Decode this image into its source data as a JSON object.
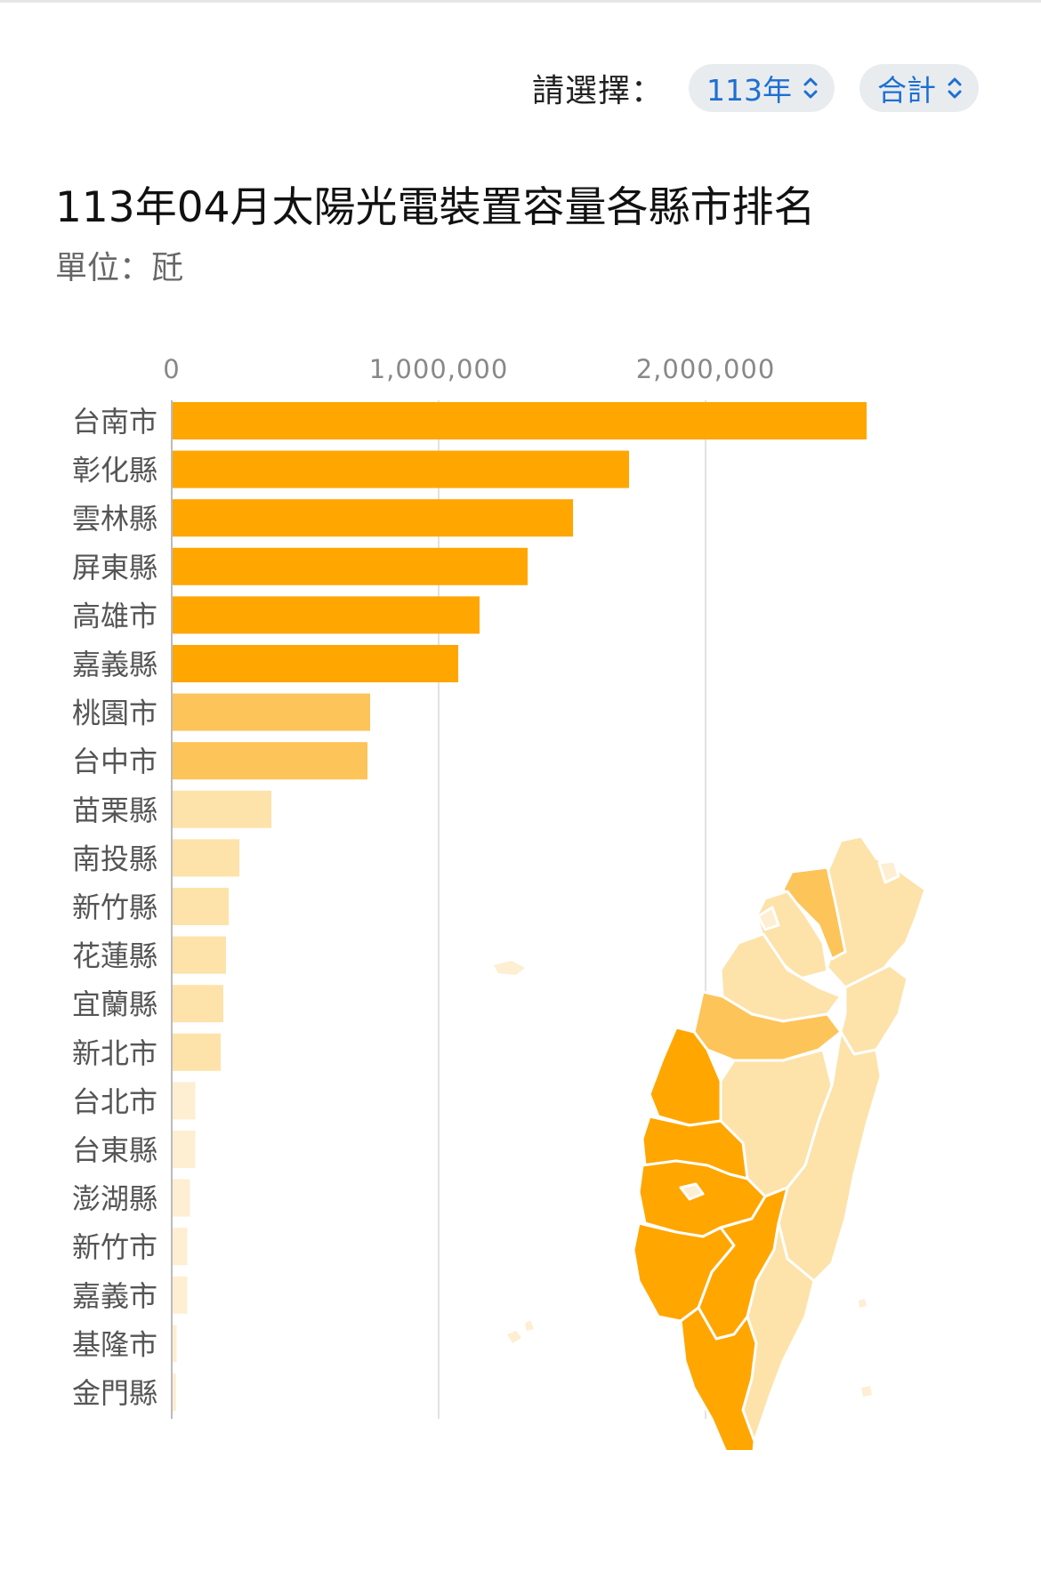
{
  "selector": {
    "label": "請選擇：",
    "year": "113年",
    "type": "合計"
  },
  "chart_data": {
    "type": "bar",
    "orientation": "horizontal",
    "title": "113年04月太陽光電裝置容量各縣市排名",
    "unit_label": "單位：瓩",
    "xlim": [
      0,
      2650000
    ],
    "ticks": [
      0,
      1000000,
      2000000
    ],
    "tick_labels": [
      "0",
      "1,000,000",
      "2,000,000"
    ],
    "grid": true,
    "categories": [
      "台南市",
      "彰化縣",
      "雲林縣",
      "屏東縣",
      "高雄市",
      "嘉義縣",
      "桃園市",
      "台中市",
      "苗栗縣",
      "南投縣",
      "新竹縣",
      "花蓮縣",
      "宜蘭縣",
      "新北市",
      "台北市",
      "台東縣",
      "澎湖縣",
      "新竹市",
      "嘉義市",
      "基隆市",
      "金門縣"
    ],
    "values": [
      2600000,
      1710000,
      1500000,
      1330000,
      1150000,
      1070000,
      740000,
      730000,
      370000,
      250000,
      210000,
      200000,
      190000,
      180000,
      85000,
      85000,
      65000,
      55000,
      55000,
      15000,
      13000
    ],
    "colors": [
      "#ffa600",
      "#ffa600",
      "#ffa600",
      "#ffa600",
      "#ffa600",
      "#ffa600",
      "#fdc459",
      "#fdc459",
      "#fde2aa",
      "#fde2aa",
      "#fde2aa",
      "#fde2aa",
      "#fde2aa",
      "#fde2aa",
      "#feeed2",
      "#feeed2",
      "#feeed2",
      "#feeed2",
      "#feeed2",
      "#feeed2",
      "#feeed2"
    ]
  },
  "map_colors": {
    "tier1": "#ffa600",
    "tier2": "#fdc459",
    "tier3": "#fde2aa",
    "tier4": "#feeed2",
    "border": "#ffffff"
  }
}
